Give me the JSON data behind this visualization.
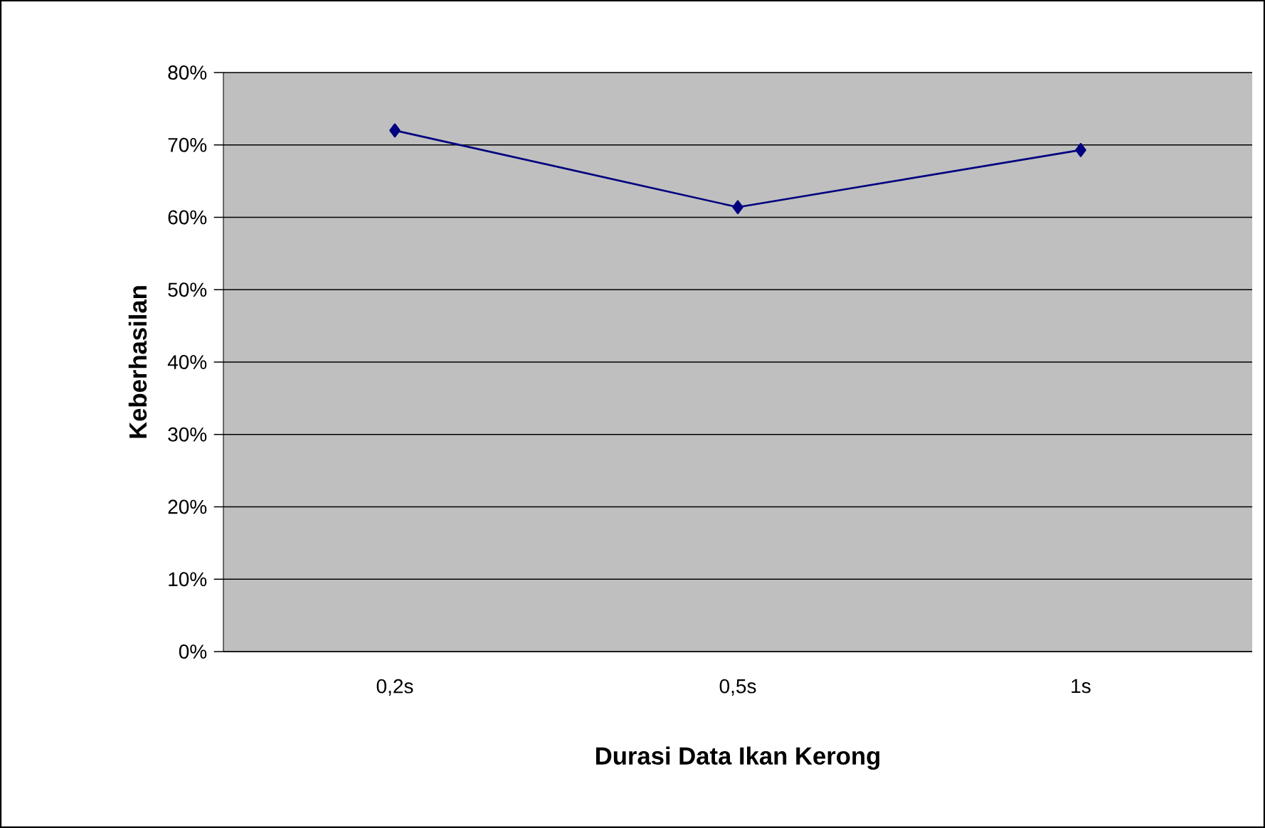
{
  "chart_data": {
    "type": "line",
    "xlabel": "Durasi Data Ikan Kerong",
    "ylabel": "Keberhasilan",
    "categories": [
      "0,2s",
      "0,5s",
      "1s"
    ],
    "series": [
      {
        "color": "#000080",
        "values": [
          72,
          61.4,
          69.3
        ]
      }
    ],
    "ylim": [
      0,
      80
    ],
    "yticks": [
      {
        "value": 0,
        "label": "0%"
      },
      {
        "value": 10,
        "label": "10%"
      },
      {
        "value": 20,
        "label": "20%"
      },
      {
        "value": 30,
        "label": "30%"
      },
      {
        "value": 40,
        "label": "40%"
      },
      {
        "value": 50,
        "label": "50%"
      },
      {
        "value": 60,
        "label": "60%"
      },
      {
        "value": 70,
        "label": "70%"
      },
      {
        "value": 80,
        "label": "80%"
      }
    ],
    "grid": "y",
    "marker": "diamond",
    "line_style": "solid"
  }
}
